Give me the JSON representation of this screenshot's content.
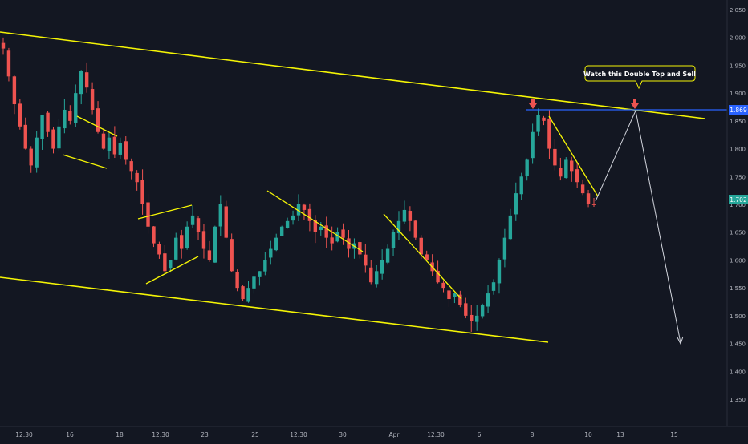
{
  "chart_data": {
    "type": "candlestick",
    "y_axis": {
      "ylim": [
        1.31,
        2.06
      ],
      "ticks": [
        "2.050",
        "2.000",
        "1.950",
        "1.900",
        "1.850",
        "1.800",
        "1.750",
        "1.700",
        "1.650",
        "1.600",
        "1.550",
        "1.500",
        "1.450",
        "1.400",
        "1.350"
      ]
    },
    "x_axis": {
      "ticks": [
        "12:30",
        "16",
        "12:30",
        "18",
        "12:30",
        "23",
        "25",
        "12:30",
        "30",
        "Apr",
        "12:30",
        "6",
        "8",
        "10",
        "13",
        "15"
      ]
    },
    "price_badges": {
      "level": "1.869",
      "current": "1.702"
    },
    "annotation": "Watch this Double Top and Sell",
    "colors": {
      "background": "#131722",
      "up": "#26a69a",
      "down": "#ef5350",
      "trendline": "#f5f505",
      "level_line": "#2962ff",
      "projection": "#d1d4dc",
      "badge_current": "#26a69a",
      "badge_level": "#2962ff",
      "marker": "#ef5350"
    },
    "series": [
      {
        "name": "",
        "close": [
          1.98,
          1.93,
          1.88,
          1.84,
          1.8,
          1.77,
          1.82,
          1.86,
          1.83,
          1.8,
          1.84,
          1.87,
          1.85,
          1.9,
          1.94,
          1.91,
          1.87,
          1.83,
          1.8,
          1.82,
          1.79,
          1.81,
          1.78,
          1.76,
          1.74,
          1.7,
          1.66,
          1.63,
          1.61,
          1.58,
          1.6,
          1.64,
          1.62,
          1.66,
          1.68,
          1.65,
          1.62,
          1.6,
          1.66,
          1.7,
          1.64,
          1.58,
          1.55,
          1.53,
          1.55,
          1.57,
          1.58,
          1.6,
          1.62,
          1.64,
          1.66,
          1.67,
          1.68,
          1.7,
          1.69,
          1.67,
          1.65,
          1.66,
          1.64,
          1.63,
          1.65,
          1.64,
          1.62,
          1.63,
          1.61,
          1.59,
          1.56,
          1.58,
          1.6,
          1.62,
          1.65,
          1.67,
          1.69,
          1.67,
          1.64,
          1.61,
          1.6,
          1.58,
          1.56,
          1.55,
          1.53,
          1.54,
          1.52,
          1.5,
          1.49,
          1.5,
          1.52,
          1.54,
          1.56,
          1.6,
          1.64,
          1.68,
          1.72,
          1.75,
          1.78,
          1.83,
          1.86,
          1.85,
          1.8,
          1.77,
          1.75,
          1.78,
          1.76,
          1.74,
          1.72,
          1.7,
          1.7
        ]
      }
    ]
  }
}
